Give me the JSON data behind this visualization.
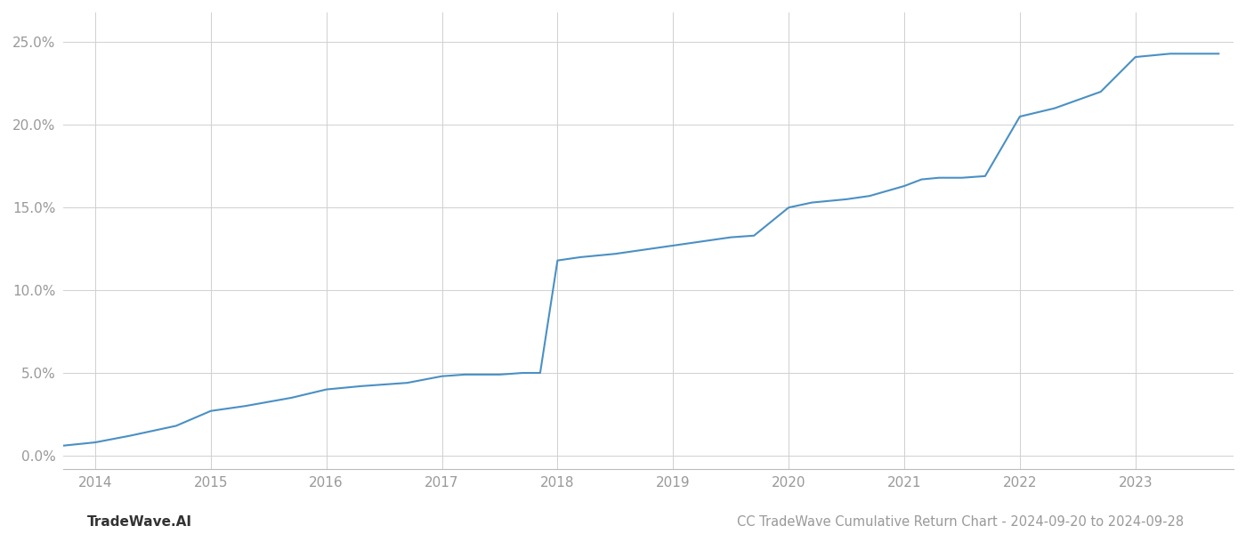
{
  "x_years": [
    2013.72,
    2014.0,
    2014.3,
    2014.7,
    2015.0,
    2015.3,
    2015.7,
    2016.0,
    2016.3,
    2016.7,
    2017.0,
    2017.2,
    2017.5,
    2017.7,
    2017.85,
    2018.0,
    2018.2,
    2018.5,
    2018.7,
    2019.0,
    2019.3,
    2019.5,
    2019.7,
    2020.0,
    2020.2,
    2020.5,
    2020.7,
    2021.0,
    2021.15,
    2021.3,
    2021.5,
    2021.7,
    2022.0,
    2022.3,
    2022.5,
    2022.7,
    2023.0,
    2023.3,
    2023.5,
    2023.72
  ],
  "y_values": [
    0.006,
    0.008,
    0.012,
    0.018,
    0.027,
    0.03,
    0.035,
    0.04,
    0.042,
    0.044,
    0.048,
    0.049,
    0.049,
    0.05,
    0.05,
    0.118,
    0.12,
    0.122,
    0.124,
    0.127,
    0.13,
    0.132,
    0.133,
    0.15,
    0.153,
    0.155,
    0.157,
    0.163,
    0.167,
    0.168,
    0.168,
    0.169,
    0.205,
    0.21,
    0.215,
    0.22,
    0.241,
    0.243,
    0.243,
    0.243
  ],
  "line_color": "#4a90c4",
  "line_width": 1.5,
  "title": "CC TradeWave Cumulative Return Chart - 2024-09-20 to 2024-09-28",
  "watermark": "TradeWave.AI",
  "xlim": [
    2013.72,
    2023.85
  ],
  "ylim": [
    -0.008,
    0.268
  ],
  "yticks": [
    0.0,
    0.05,
    0.1,
    0.15,
    0.2,
    0.25
  ],
  "ytick_labels": [
    "0.0%",
    "5.0%",
    "10.0%",
    "15.0%",
    "20.0%",
    "25.0%"
  ],
  "xticks": [
    2014,
    2015,
    2016,
    2017,
    2018,
    2019,
    2020,
    2021,
    2022,
    2023
  ],
  "background_color": "#ffffff",
  "grid_color": "#d0d0d0",
  "tick_color": "#999999",
  "title_fontsize": 10.5,
  "watermark_fontsize": 11
}
